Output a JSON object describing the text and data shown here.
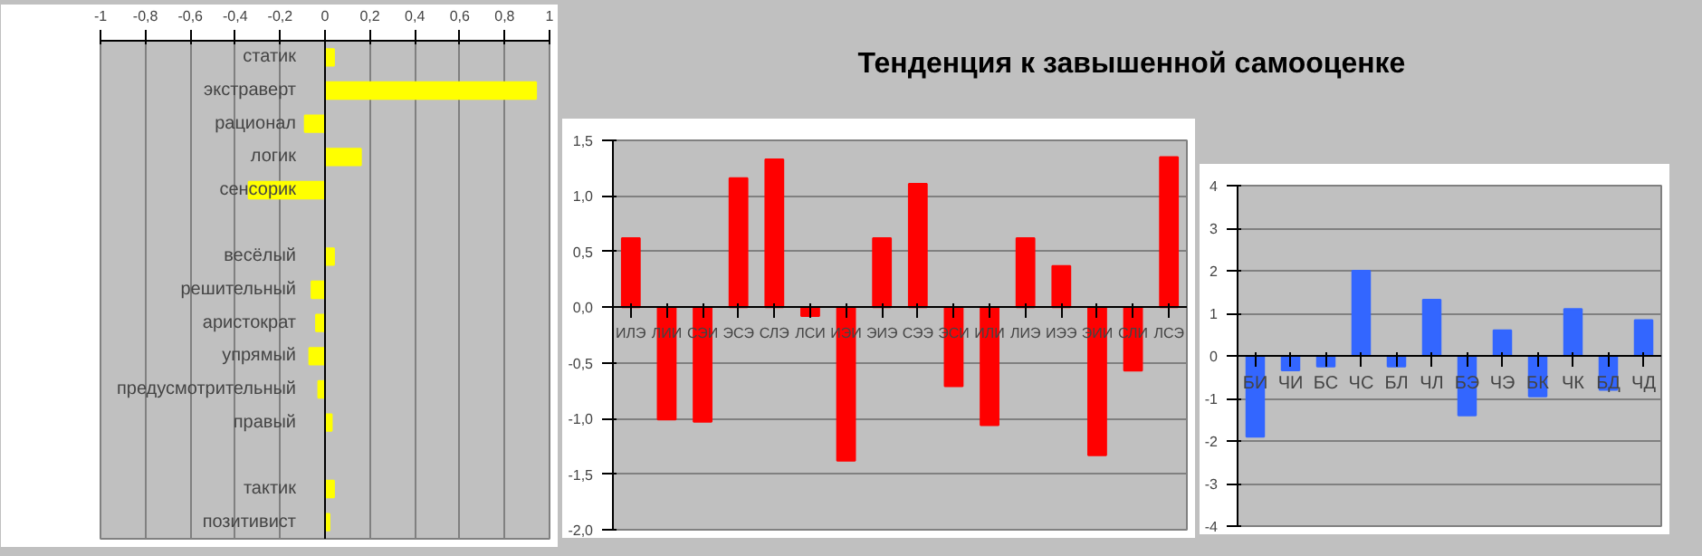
{
  "chart_data": [
    {
      "type": "bar",
      "orientation": "horizontal",
      "categories": [
        "статик",
        "экстраверт",
        "рационал",
        "логик",
        "сенсорик",
        null,
        "весёлый",
        "решительный",
        "аристократ",
        "упрямый",
        "предусмотрительный",
        "правый",
        null,
        "тактик",
        "позитивист"
      ],
      "values": [
        0.04,
        0.94,
        -0.09,
        0.16,
        -0.34,
        null,
        0.04,
        -0.06,
        -0.04,
        -0.07,
        -0.03,
        0.03,
        null,
        0.04,
        0.02
      ],
      "color": "#ffff00",
      "xlim": [
        -1,
        1
      ],
      "xticks": [
        -1,
        {
          "value": -0.8,
          "label": "-0,8"
        },
        {
          "value": -0.6,
          "label": "-0,6"
        },
        {
          "value": -0.4,
          "label": "-0,4"
        },
        {
          "value": -0.2,
          "label": "-0,2"
        },
        0,
        {
          "value": 0.2,
          "label": "0,2"
        },
        {
          "value": 0.4,
          "label": "0,4"
        },
        {
          "value": 0.6,
          "label": "0,6"
        },
        {
          "value": 0.8,
          "label": "0,8"
        },
        1
      ],
      "grid": "x"
    },
    {
      "type": "bar",
      "title": "Тенденция к завышенной самооценке",
      "categories": [
        "ИЛЭ",
        "ЛИИ",
        "СЭИ",
        "ЭСЭ",
        "СЛЭ",
        "ЛСИ",
        "ИЭИ",
        "ЭИЭ",
        "СЭЭ",
        "ЭСИ",
        "ИЛИ",
        "ЛИЭ",
        "ИЭЭ",
        "ЭИИ",
        "СЛИ",
        "ЛСЭ"
      ],
      "values": [
        0.62,
        -1.01,
        -1.03,
        1.16,
        1.33,
        -0.08,
        -1.38,
        0.62,
        1.11,
        -0.71,
        -1.06,
        0.62,
        0.37,
        -1.33,
        -0.57,
        1.35
      ],
      "color": "#ff0000",
      "ylim": [
        -2.0,
        1.5
      ],
      "yticks": [
        {
          "value": -2.0,
          "label": "-2,0"
        },
        {
          "value": -1.5,
          "label": "-1,5"
        },
        {
          "value": -1.0,
          "label": "-1,0"
        },
        {
          "value": -0.5,
          "label": "-0,5"
        },
        {
          "value": 0.0,
          "label": "0,0"
        },
        {
          "value": 0.5,
          "label": "0,5"
        },
        {
          "value": 1.0,
          "label": "1,0"
        },
        {
          "value": 1.5,
          "label": "1,5"
        }
      ],
      "grid": "y"
    },
    {
      "type": "bar",
      "categories": [
        "БИ",
        "ЧИ",
        "БС",
        "ЧС",
        "БЛ",
        "ЧЛ",
        "БЭ",
        "ЧЭ",
        "БК",
        "ЧК",
        "БД",
        "ЧД"
      ],
      "values": [
        -1.9,
        -0.34,
        -0.25,
        2.0,
        -0.25,
        1.32,
        -1.4,
        0.6,
        -0.95,
        1.1,
        -0.8,
        0.84
      ],
      "color": "#3366ff",
      "ylim": [
        -4,
        4
      ],
      "yticks": [
        -4,
        -3,
        -2,
        -1,
        0,
        1,
        2,
        3,
        4
      ],
      "grid": "y"
    }
  ]
}
